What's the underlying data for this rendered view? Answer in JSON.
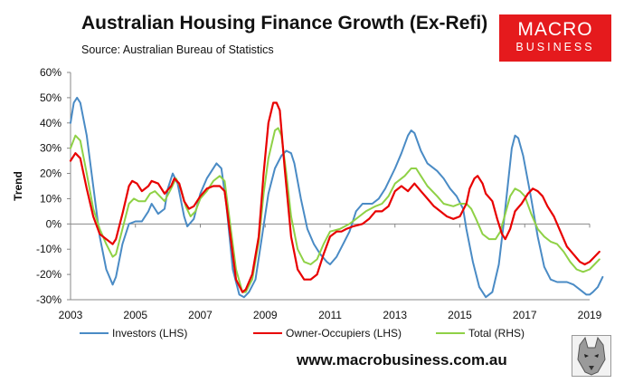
{
  "header": {
    "title": "Australian Housing Finance Growth (Ex-Refi)",
    "source": "Source: Australian Bureau of Statistics"
  },
  "logo": {
    "line1": "MACRO",
    "line2": "BUSINESS"
  },
  "footer": {
    "url": "www.macrobusiness.com.au"
  },
  "colors": {
    "investors": "#4a8bc5",
    "owner": "#e80000",
    "total": "#8fd146",
    "brand": "#e51a1d"
  },
  "chart_data": {
    "type": "line",
    "title": "Australian Housing Finance Growth (Ex-Refi)",
    "xlabel": "",
    "ylabel": "Trend",
    "xlim": [
      2003,
      2019
    ],
    "ylim": [
      -30,
      60
    ],
    "yticks": [
      -30,
      -20,
      -10,
      0,
      10,
      20,
      30,
      40,
      50,
      60
    ],
    "xticks": [
      2003,
      2005,
      2007,
      2009,
      2011,
      2013,
      2015,
      2017,
      2019
    ],
    "ytick_labels": [
      "-30%",
      "-20%",
      "-10%",
      "0%",
      "10%",
      "20%",
      "30%",
      "40%",
      "50%",
      "60%"
    ],
    "xtick_labels": [
      "2003",
      "2005",
      "2007",
      "2009",
      "2011",
      "2013",
      "2015",
      "2017",
      "2019"
    ],
    "legend_position": "bottom",
    "series": [
      {
        "name": "Investors (LHS)",
        "key": "investors",
        "points": [
          [
            2003.0,
            40
          ],
          [
            2003.1,
            48
          ],
          [
            2003.2,
            50
          ],
          [
            2003.3,
            48
          ],
          [
            2003.5,
            35
          ],
          [
            2003.7,
            15
          ],
          [
            2003.9,
            -5
          ],
          [
            2004.1,
            -18
          ],
          [
            2004.3,
            -24
          ],
          [
            2004.4,
            -21
          ],
          [
            2004.6,
            -8
          ],
          [
            2004.8,
            0
          ],
          [
            2005.0,
            1
          ],
          [
            2005.2,
            1
          ],
          [
            2005.4,
            5
          ],
          [
            2005.5,
            8
          ],
          [
            2005.7,
            4
          ],
          [
            2005.9,
            6
          ],
          [
            2006.0,
            14
          ],
          [
            2006.15,
            20
          ],
          [
            2006.3,
            16
          ],
          [
            2006.5,
            3
          ],
          [
            2006.6,
            -1
          ],
          [
            2006.8,
            2
          ],
          [
            2007.0,
            12
          ],
          [
            2007.2,
            18
          ],
          [
            2007.5,
            24
          ],
          [
            2007.65,
            22
          ],
          [
            2007.8,
            8
          ],
          [
            2008.0,
            -18
          ],
          [
            2008.2,
            -28
          ],
          [
            2008.35,
            -29
          ],
          [
            2008.5,
            -27
          ],
          [
            2008.7,
            -22
          ],
          [
            2008.9,
            -5
          ],
          [
            2009.1,
            12
          ],
          [
            2009.3,
            22
          ],
          [
            2009.5,
            27
          ],
          [
            2009.65,
            29
          ],
          [
            2009.8,
            28
          ],
          [
            2009.9,
            24
          ],
          [
            2010.1,
            10
          ],
          [
            2010.3,
            -2
          ],
          [
            2010.5,
            -8
          ],
          [
            2010.7,
            -12
          ],
          [
            2010.9,
            -15
          ],
          [
            2011.0,
            -16
          ],
          [
            2011.2,
            -13
          ],
          [
            2011.4,
            -8
          ],
          [
            2011.6,
            -3
          ],
          [
            2011.8,
            5
          ],
          [
            2012.0,
            8
          ],
          [
            2012.3,
            8
          ],
          [
            2012.5,
            10
          ],
          [
            2012.7,
            14
          ],
          [
            2013.0,
            22
          ],
          [
            2013.2,
            28
          ],
          [
            2013.4,
            35
          ],
          [
            2013.5,
            37
          ],
          [
            2013.6,
            36
          ],
          [
            2013.8,
            29
          ],
          [
            2014.0,
            24
          ],
          [
            2014.3,
            21
          ],
          [
            2014.5,
            18
          ],
          [
            2014.7,
            14
          ],
          [
            2014.9,
            11
          ],
          [
            2015.1,
            6
          ],
          [
            2015.2,
            -2
          ],
          [
            2015.4,
            -15
          ],
          [
            2015.6,
            -25
          ],
          [
            2015.8,
            -29
          ],
          [
            2016.0,
            -27
          ],
          [
            2016.2,
            -16
          ],
          [
            2016.35,
            0
          ],
          [
            2016.5,
            18
          ],
          [
            2016.6,
            30
          ],
          [
            2016.7,
            35
          ],
          [
            2016.8,
            34
          ],
          [
            2016.95,
            27
          ],
          [
            2017.2,
            10
          ],
          [
            2017.4,
            -5
          ],
          [
            2017.6,
            -17
          ],
          [
            2017.8,
            -22
          ],
          [
            2018.0,
            -23
          ],
          [
            2018.3,
            -23
          ],
          [
            2018.5,
            -24
          ],
          [
            2018.7,
            -26
          ],
          [
            2018.9,
            -28
          ],
          [
            2019.0,
            -28
          ],
          [
            2019.1,
            -27
          ],
          [
            2019.25,
            -25
          ],
          [
            2019.4,
            -21
          ]
        ]
      },
      {
        "name": "Owner-Occupiers (LHS)",
        "key": "owner",
        "points": [
          [
            2003.0,
            25
          ],
          [
            2003.15,
            28
          ],
          [
            2003.3,
            26
          ],
          [
            2003.5,
            14
          ],
          [
            2003.7,
            3
          ],
          [
            2003.9,
            -4
          ],
          [
            2004.1,
            -6
          ],
          [
            2004.3,
            -8
          ],
          [
            2004.4,
            -6
          ],
          [
            2004.6,
            4
          ],
          [
            2004.8,
            15
          ],
          [
            2004.9,
            17
          ],
          [
            2005.05,
            16
          ],
          [
            2005.2,
            13
          ],
          [
            2005.4,
            15
          ],
          [
            2005.5,
            17
          ],
          [
            2005.7,
            16
          ],
          [
            2005.9,
            12
          ],
          [
            2006.1,
            15
          ],
          [
            2006.2,
            18
          ],
          [
            2006.35,
            16
          ],
          [
            2006.5,
            9
          ],
          [
            2006.65,
            6
          ],
          [
            2006.8,
            7
          ],
          [
            2007.0,
            11
          ],
          [
            2007.2,
            14
          ],
          [
            2007.4,
            15
          ],
          [
            2007.6,
            15
          ],
          [
            2007.75,
            13
          ],
          [
            2007.9,
            -2
          ],
          [
            2008.1,
            -22
          ],
          [
            2008.3,
            -27
          ],
          [
            2008.4,
            -26
          ],
          [
            2008.6,
            -20
          ],
          [
            2008.8,
            -5
          ],
          [
            2008.95,
            20
          ],
          [
            2009.1,
            40
          ],
          [
            2009.25,
            48
          ],
          [
            2009.35,
            48
          ],
          [
            2009.45,
            45
          ],
          [
            2009.6,
            22
          ],
          [
            2009.8,
            -5
          ],
          [
            2010.0,
            -18
          ],
          [
            2010.2,
            -22
          ],
          [
            2010.4,
            -22
          ],
          [
            2010.6,
            -20
          ],
          [
            2010.8,
            -12
          ],
          [
            2011.0,
            -5
          ],
          [
            2011.2,
            -3
          ],
          [
            2011.35,
            -3
          ],
          [
            2011.5,
            -2
          ],
          [
            2011.7,
            -1
          ],
          [
            2012.0,
            0
          ],
          [
            2012.2,
            2
          ],
          [
            2012.4,
            5
          ],
          [
            2012.6,
            5
          ],
          [
            2012.8,
            7
          ],
          [
            2013.0,
            13
          ],
          [
            2013.2,
            15
          ],
          [
            2013.4,
            13
          ],
          [
            2013.6,
            16
          ],
          [
            2013.8,
            13
          ],
          [
            2014.0,
            10
          ],
          [
            2014.2,
            7
          ],
          [
            2014.4,
            5
          ],
          [
            2014.6,
            3
          ],
          [
            2014.8,
            2
          ],
          [
            2015.0,
            3
          ],
          [
            2015.2,
            8
          ],
          [
            2015.3,
            14
          ],
          [
            2015.45,
            18
          ],
          [
            2015.55,
            19
          ],
          [
            2015.7,
            16
          ],
          [
            2015.8,
            12
          ],
          [
            2016.0,
            9
          ],
          [
            2016.15,
            2
          ],
          [
            2016.3,
            -4
          ],
          [
            2016.4,
            -6
          ],
          [
            2016.55,
            -2
          ],
          [
            2016.7,
            5
          ],
          [
            2016.9,
            8
          ],
          [
            2017.1,
            12
          ],
          [
            2017.25,
            14
          ],
          [
            2017.4,
            13
          ],
          [
            2017.55,
            11
          ],
          [
            2017.7,
            7
          ],
          [
            2017.9,
            3
          ],
          [
            2018.1,
            -3
          ],
          [
            2018.3,
            -9
          ],
          [
            2018.5,
            -12
          ],
          [
            2018.7,
            -15
          ],
          [
            2018.85,
            -16
          ],
          [
            2019.0,
            -15
          ],
          [
            2019.15,
            -13
          ],
          [
            2019.3,
            -11
          ]
        ]
      },
      {
        "name": "Total (RHS)",
        "key": "total",
        "points": [
          [
            2003.0,
            30
          ],
          [
            2003.15,
            35
          ],
          [
            2003.3,
            33
          ],
          [
            2003.5,
            20
          ],
          [
            2003.7,
            6
          ],
          [
            2003.9,
            -2
          ],
          [
            2004.1,
            -8
          ],
          [
            2004.3,
            -13
          ],
          [
            2004.4,
            -12
          ],
          [
            2004.6,
            -2
          ],
          [
            2004.8,
            8
          ],
          [
            2004.95,
            10
          ],
          [
            2005.1,
            9
          ],
          [
            2005.3,
            9
          ],
          [
            2005.45,
            12
          ],
          [
            2005.6,
            13
          ],
          [
            2005.75,
            11
          ],
          [
            2005.9,
            9
          ],
          [
            2006.1,
            14
          ],
          [
            2006.25,
            18
          ],
          [
            2006.4,
            14
          ],
          [
            2006.55,
            7
          ],
          [
            2006.7,
            3
          ],
          [
            2006.85,
            5
          ],
          [
            2007.0,
            10
          ],
          [
            2007.2,
            13
          ],
          [
            2007.4,
            17
          ],
          [
            2007.6,
            19
          ],
          [
            2007.75,
            17
          ],
          [
            2007.9,
            2
          ],
          [
            2008.1,
            -18
          ],
          [
            2008.3,
            -27
          ],
          [
            2008.4,
            -27
          ],
          [
            2008.6,
            -22
          ],
          [
            2008.8,
            -7
          ],
          [
            2008.95,
            12
          ],
          [
            2009.1,
            26
          ],
          [
            2009.3,
            37
          ],
          [
            2009.4,
            38
          ],
          [
            2009.5,
            35
          ],
          [
            2009.65,
            20
          ],
          [
            2009.8,
            3
          ],
          [
            2010.0,
            -10
          ],
          [
            2010.2,
            -15
          ],
          [
            2010.4,
            -16
          ],
          [
            2010.6,
            -14
          ],
          [
            2010.8,
            -8
          ],
          [
            2011.0,
            -3
          ],
          [
            2011.3,
            -2
          ],
          [
            2011.6,
            0
          ],
          [
            2011.9,
            3
          ],
          [
            2012.1,
            5
          ],
          [
            2012.4,
            7
          ],
          [
            2012.6,
            8
          ],
          [
            2012.8,
            11
          ],
          [
            2013.0,
            16
          ],
          [
            2013.3,
            19
          ],
          [
            2013.5,
            22
          ],
          [
            2013.65,
            22
          ],
          [
            2013.8,
            19
          ],
          [
            2014.0,
            15
          ],
          [
            2014.3,
            11
          ],
          [
            2014.5,
            8
          ],
          [
            2014.8,
            7
          ],
          [
            2015.0,
            8
          ],
          [
            2015.2,
            8
          ],
          [
            2015.35,
            6
          ],
          [
            2015.5,
            2
          ],
          [
            2015.7,
            -4
          ],
          [
            2015.9,
            -6
          ],
          [
            2016.1,
            -6
          ],
          [
            2016.25,
            -3
          ],
          [
            2016.4,
            4
          ],
          [
            2016.55,
            11
          ],
          [
            2016.7,
            14
          ],
          [
            2016.85,
            13
          ],
          [
            2017.0,
            11
          ],
          [
            2017.2,
            4
          ],
          [
            2017.4,
            -2
          ],
          [
            2017.6,
            -5
          ],
          [
            2017.8,
            -7
          ],
          [
            2018.0,
            -8
          ],
          [
            2018.2,
            -11
          ],
          [
            2018.4,
            -15
          ],
          [
            2018.6,
            -18
          ],
          [
            2018.8,
            -19
          ],
          [
            2019.0,
            -18
          ],
          [
            2019.15,
            -16
          ],
          [
            2019.3,
            -14
          ]
        ]
      }
    ]
  }
}
